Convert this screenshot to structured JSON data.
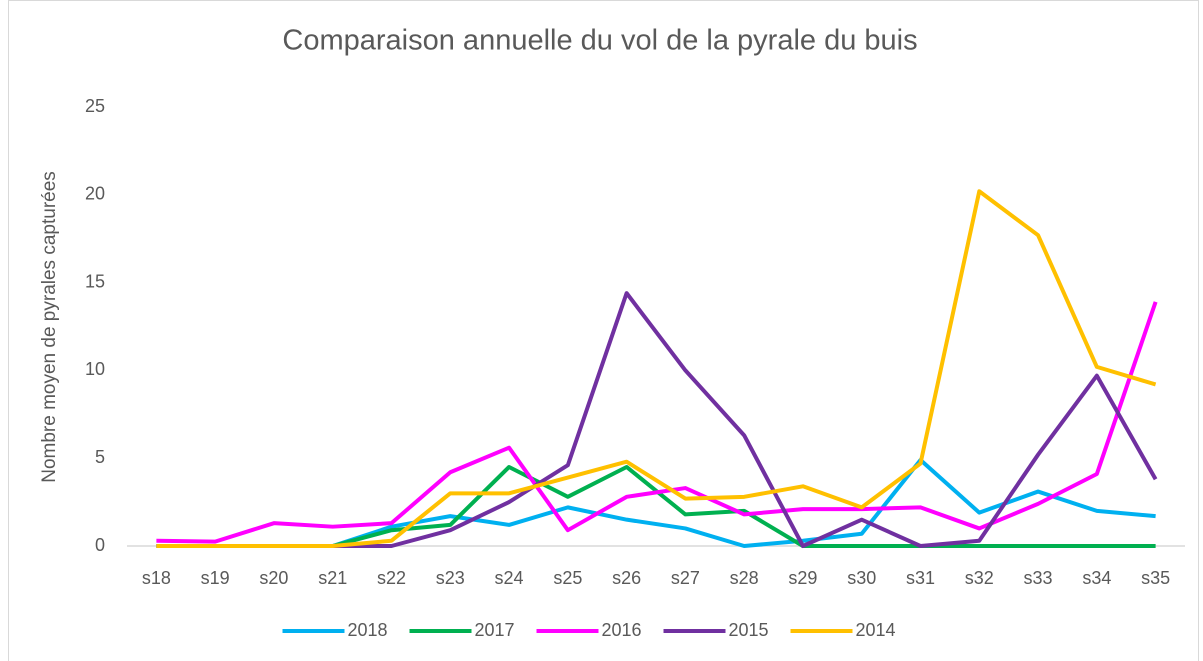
{
  "chart_data": {
    "type": "line",
    "title": "Comparaison annuelle du vol de la pyrale du buis",
    "y_label": "Nombre moyen de pyrales capturées",
    "categories": [
      "s18",
      "s19",
      "s20",
      "s21",
      "s22",
      "s23",
      "s24",
      "s25",
      "s26",
      "s27",
      "s28",
      "s29",
      "s30",
      "s31",
      "s32",
      "s33",
      "s34",
      "s35"
    ],
    "series": [
      {
        "name": "2018",
        "color": "#00b0f0",
        "values": [
          0,
          0,
          0,
          0,
          1.1,
          1.7,
          1.2,
          2.2,
          1.5,
          1.0,
          0,
          0.3,
          0.7,
          4.9,
          1.9,
          3.1,
          2.0,
          1.7
        ]
      },
      {
        "name": "2017",
        "color": "#00b050",
        "values": [
          0,
          0,
          0,
          0,
          0.9,
          1.2,
          4.5,
          2.8,
          4.5,
          1.8,
          2.0,
          0,
          0,
          0,
          0,
          0,
          0,
          0
        ]
      },
      {
        "name": "2016",
        "color": "#ff00ff",
        "values": [
          0.3,
          0.25,
          1.3,
          1.1,
          1.3,
          4.2,
          5.6,
          0.9,
          2.8,
          3.3,
          1.8,
          2.1,
          2.1,
          2.2,
          1.0,
          2.4,
          4.1,
          13.9
        ]
      },
      {
        "name": "2015",
        "color": "#7030a0",
        "values": [
          0,
          0,
          0,
          0,
          0,
          0.9,
          2.5,
          4.6,
          14.4,
          10.0,
          6.3,
          0,
          1.5,
          0,
          0.3,
          5.2,
          9.7,
          3.8
        ]
      },
      {
        "name": "2014",
        "color": "#ffc000",
        "values": [
          0,
          0,
          0,
          0,
          0.3,
          3.0,
          3.0,
          3.9,
          4.8,
          2.7,
          2.8,
          3.4,
          2.2,
          4.7,
          20.2,
          17.7,
          10.2,
          9.2
        ]
      }
    ],
    "ylim": [
      0,
      25
    ],
    "yticks": [
      0,
      5,
      10,
      15,
      20,
      25
    ],
    "grid": false,
    "legend": "bottom"
  }
}
